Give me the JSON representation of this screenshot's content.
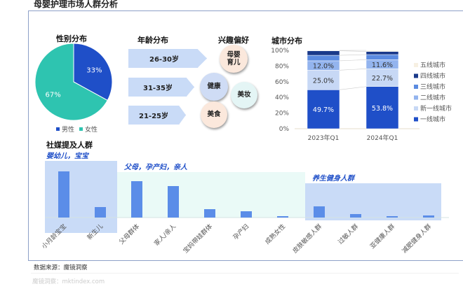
{
  "title": "母婴护理市场人群分析",
  "source": "数据来源：魔镜洞察",
  "watermark": "魔镜洞察：mktindex.com",
  "chart_data": [
    {
      "type": "pie",
      "title": "性别分布",
      "categories": [
        "男性",
        "女性"
      ],
      "values": [
        33,
        67
      ],
      "labels": [
        "33%",
        "67%"
      ],
      "colors": [
        "#1f4fc8",
        "#2ec4b0"
      ],
      "legend": "bottom"
    },
    {
      "type": "table",
      "title": "年龄分布",
      "items": [
        "26-30岁",
        "31-35岁",
        "21-25岁"
      ]
    },
    {
      "type": "table",
      "title": "兴趣偏好",
      "items": [
        {
          "label": "母婴育儿",
          "color": "#fbe8dc"
        },
        {
          "label": "健康",
          "color": "#cfdcf5"
        },
        {
          "label": "美妆",
          "color": "#e4f5f5"
        },
        {
          "label": "美食",
          "color": "#fbe8dc"
        }
      ]
    },
    {
      "type": "bar",
      "stacked": true,
      "title": "城市分布",
      "categories": [
        "2023年Q1",
        "2024年Q1"
      ],
      "yticks": [
        "0%",
        "20%",
        "40%",
        "60%",
        "80%",
        "100%"
      ],
      "ylim": [
        0,
        100
      ],
      "legend": "right",
      "series": [
        {
          "name": "一线城市",
          "values": [
            49.7,
            53.8
          ],
          "labels": [
            "49.7%",
            "53.8%"
          ],
          "color": "#1f4fc8"
        },
        {
          "name": "新一线城市",
          "values": [
            25.0,
            22.7
          ],
          "labels": [
            "25.0%",
            "22.7%"
          ],
          "color": "#c7d8f5"
        },
        {
          "name": "二线城市",
          "values": [
            12.0,
            11.6
          ],
          "labels": [
            "12.0%",
            "11.6%"
          ],
          "color": "#93b4ee"
        },
        {
          "name": "三线城市",
          "values": [
            7.0,
            6.5
          ],
          "color": "#5b8be0"
        },
        {
          "name": "四线城市",
          "values": [
            5.8,
            4.0
          ],
          "color": "#1a3a8a"
        },
        {
          "name": "五线城市",
          "values": [
            0.5,
            1.4
          ],
          "color": "#f7f0e2"
        }
      ]
    },
    {
      "type": "bar",
      "title": "社媒提及人群",
      "categories": [
        "小月龄宝宝",
        "新生儿",
        "父母群体",
        "家人/亲人",
        "宝妈带娃群体",
        "孕产妇",
        "成熟女性",
        "皮肤敏感人群",
        "过敏人群",
        "亚健康人群",
        "减肥健身人群"
      ],
      "values": [
        66,
        15,
        52,
        45,
        12,
        9,
        2,
        16,
        5,
        2,
        3
      ],
      "color": "#5b8de8",
      "groups": [
        {
          "label": "婴幼儿，宝宝",
          "range": [
            0,
            1
          ],
          "color": "#c9dbf7"
        },
        {
          "label": "父母，孕产妇，亲人",
          "range": [
            2,
            6
          ],
          "color": "#eafaf7"
        },
        {
          "label": "养生健身人群",
          "range": [
            7,
            10
          ],
          "color": "#c9dbf7"
        }
      ]
    }
  ]
}
